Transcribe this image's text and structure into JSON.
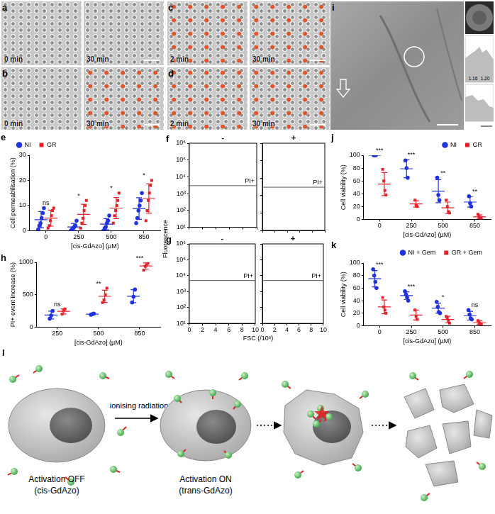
{
  "images": [
    {
      "panel": "a",
      "frames": [
        "0 min",
        "30 min"
      ]
    },
    {
      "panel": "b",
      "frames": [
        "0 min",
        "30 min"
      ]
    },
    {
      "panel": "c",
      "frames": [
        "2 min",
        "30 min"
      ]
    },
    {
      "panel": "d",
      "frames": [
        "2 min",
        "30 min"
      ]
    },
    {
      "panel": "i",
      "profile_ticks": [
        1.16,
        {
          "value": 1.2,
          "label": "1.20"
        }
      ]
    }
  ],
  "chart_data": [
    {
      "panel": "e",
      "type": "strip",
      "categories": [
        "0",
        "250",
        "500",
        "850"
      ],
      "x_label": "[cis-GdAzo] (µM)",
      "y_label": "Cell permeabilisation (%)",
      "ylim": [
        0,
        30
      ],
      "yticks": [
        0,
        10,
        20,
        30
      ],
      "grid": false,
      "legend": "top-left",
      "significance": [
        "ns",
        "*",
        "*",
        "*"
      ],
      "series": [
        {
          "name": "NI",
          "color": "#2233dd",
          "marker": "circle",
          "values": [
            [
              0.5,
              2,
              3,
              5,
              7,
              9
            ],
            [
              0,
              0.5,
              1,
              1.5,
              2,
              4
            ],
            [
              0,
              1,
              1.5,
              3,
              4,
              6
            ],
            [
              3,
              5,
              8,
              10,
              12,
              15
            ]
          ],
          "mean": [
            4.4,
            1.5,
            2.6,
            8.8
          ],
          "sd": [
            3.2,
            1.4,
            2.2,
            4.3
          ]
        },
        {
          "name": "GR",
          "color": "#e8202a",
          "marker": "square",
          "values": [
            [
              1,
              2,
              4,
              6,
              8,
              9
            ],
            [
              1,
              3,
              5,
              8,
              10,
              12
            ],
            [
              3,
              6,
              8,
              10,
              12,
              15
            ],
            [
              4,
              8,
              12,
              15,
              18,
              20
            ]
          ],
          "mean": [
            5,
            6.5,
            9,
            12.8
          ],
          "sd": [
            3.2,
            4,
            4.2,
            5.8
          ]
        }
      ]
    },
    {
      "panel": "h",
      "type": "strip",
      "categories": [
        "250",
        "500",
        "850"
      ],
      "x_label": "[cis-GdAzo] (µM)",
      "y_label": "PI+ event increase (%)",
      "ylim": [
        0,
        1000
      ],
      "yticks": [
        0,
        500,
        1000
      ],
      "grid": false,
      "significance": [
        "ns",
        "**",
        "***"
      ],
      "series": [
        {
          "name": "NI",
          "color": "#2233dd",
          "marker": "circle",
          "values": [
            [
              130,
              180,
              250
            ],
            [
              190,
              200,
              210
            ],
            [
              380,
              470,
              580
            ]
          ],
          "mean": [
            187,
            200,
            477
          ],
          "sd": [
            60,
            10,
            100
          ]
        },
        {
          "name": "GR",
          "color": "#e8202a",
          "marker": "square",
          "values": [
            [
              200,
              250,
              280
            ],
            [
              380,
              420,
              500,
              600
            ],
            [
              880,
              940,
              960,
              990
            ]
          ],
          "mean": [
            243,
            475,
            943
          ],
          "sd": [
            40,
            95,
            47
          ]
        }
      ]
    },
    {
      "panel": "j",
      "type": "strip",
      "categories": [
        "0",
        "250",
        "500",
        "850"
      ],
      "x_label": "[cis-GdAzo] (µM)",
      "y_label": "Cell viability (%)",
      "ylim": [
        0,
        100
      ],
      "yticks": [
        0,
        20,
        40,
        60,
        80,
        100
      ],
      "grid": false,
      "legend": "top-right",
      "significance": [
        "***",
        "***",
        "**",
        "**"
      ],
      "series": [
        {
          "name": "NI",
          "color": "#2233dd",
          "marker": "circle",
          "values": [
            [
              100,
              100,
              100
            ],
            [
              92,
              80,
              65
            ],
            [
              65,
              38,
              30
            ],
            [
              36,
              25,
              20
            ]
          ],
          "mean": [
            100,
            79,
            44,
            27
          ],
          "sd": [
            0,
            14,
            18,
            8
          ]
        },
        {
          "name": "GR",
          "color": "#e8202a",
          "marker": "square",
          "values": [
            [
              78,
              60,
              45,
              38
            ],
            [
              30,
              22,
              20
            ],
            [
              30,
              20,
              12,
              10
            ],
            [
              8,
              4,
              2,
              2
            ]
          ],
          "mean": [
            55,
            24,
            18,
            4
          ],
          "sd": [
            18,
            5,
            9,
            3
          ]
        }
      ]
    },
    {
      "panel": "k",
      "type": "strip",
      "categories": [
        "0",
        "250",
        "500",
        "850"
      ],
      "x_label": "[cis-GdAzo] (µM)",
      "y_label": "Cell viability (%)",
      "ylim": [
        0,
        100
      ],
      "yticks": [
        0,
        20,
        40,
        60,
        80,
        100
      ],
      "grid": false,
      "legend": "top-right",
      "significance": [
        "***",
        "***",
        "*",
        "ns"
      ],
      "series": [
        {
          "name": "NI + Gem",
          "color": "#2233dd",
          "marker": "circle",
          "values": [
            [
              90,
              80,
              70,
              60
            ],
            [
              55,
              50,
              45,
              40
            ],
            [
              38,
              30,
              22,
              20
            ],
            [
              25,
              18,
              12,
              10
            ]
          ],
          "mean": [
            75,
            48,
            28,
            16
          ],
          "sd": [
            13,
            6,
            8,
            7
          ]
        },
        {
          "name": "GR + Gem",
          "color": "#e8202a",
          "marker": "square",
          "values": [
            [
              45,
              30,
              25,
              20
            ],
            [
              25,
              15,
              10
            ],
            [
              15,
              12,
              8,
              4
            ],
            [
              8,
              5,
              3,
              2
            ]
          ],
          "mean": [
            30,
            17,
            10,
            5
          ],
          "sd": [
            11,
            8,
            5,
            3
          ]
        }
      ]
    },
    {
      "panel": "f",
      "type": "density",
      "panels": [
        "-",
        "+"
      ],
      "gate_label": "PI+",
      "gate": 3000,
      "y_label": "Fluorescence",
      "log": "y",
      "grid": false,
      "tick_labels": "y",
      "xlim": [
        0,
        10
      ],
      "xticks": [
        0,
        2,
        4,
        6,
        8,
        10
      ],
      "ylim": [
        10,
        1000000
      ],
      "yticks": [
        {
          "value": 10,
          "label": "10¹"
        },
        {
          "value": 100,
          "label": "10²"
        },
        {
          "value": 1000,
          "label": "10³"
        },
        {
          "value": 10000,
          "label": "10⁴"
        },
        {
          "value": 100000,
          "label": "10⁵"
        },
        {
          "value": 1000000,
          "label": "10⁶"
        }
      ]
    },
    {
      "panel": "g",
      "type": "density",
      "panels": [
        "-",
        "+"
      ],
      "gate_label": "PI+",
      "gate": 5000,
      "x_label": "FSC (/10⁶)",
      "log": "y",
      "grid": false,
      "tick_labels": true,
      "xlim": [
        0,
        10
      ],
      "xticks": [
        0,
        2,
        4,
        6,
        8,
        10
      ],
      "ylim": [
        10,
        1000000
      ],
      "yticks": [
        {
          "value": 10,
          "label": "10¹"
        },
        {
          "value": 100,
          "label": "10²"
        },
        {
          "value": 1000,
          "label": "10³"
        },
        {
          "value": 10000,
          "label": "10⁴"
        },
        {
          "value": 100000,
          "label": "10⁵"
        },
        {
          "value": 1000000,
          "label": "10⁶"
        }
      ]
    }
  ],
  "schematic": {
    "panel": "l",
    "arrow_label": "ionising radiation",
    "stages": [
      {
        "label": [
          "Activation OFF",
          "(cis-GdAzo)"
        ]
      },
      {
        "label": [
          "Activation ON",
          "(trans-GdAzo)"
        ]
      }
    ]
  }
}
